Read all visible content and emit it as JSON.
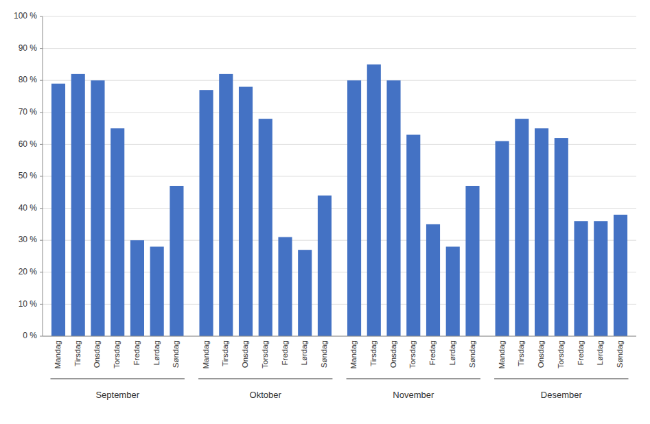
{
  "chart_data": {
    "type": "bar",
    "categories": [
      "Mandag",
      "Tirsdag",
      "Onsdag",
      "Torsdag",
      "Fredag",
      "Lørdag",
      "Søndag",
      "Mandag",
      "Tirsdag",
      "Onsdag",
      "Torsdag",
      "Fredag",
      "Lørdag",
      "Søndag",
      "Mandag",
      "Tirsdag",
      "Onsdag",
      "Torsdag",
      "Fredag",
      "Lørdag",
      "Søndag",
      "Mandag",
      "Tirsdag",
      "Onsdag",
      "Torsdag",
      "Fredag",
      "Lørdag",
      "Søndag"
    ],
    "groups": [
      "September",
      "Oktober",
      "November",
      "Desember"
    ],
    "values": [
      0.79,
      0.82,
      0.8,
      0.65,
      0.3,
      0.28,
      0.47,
      0.77,
      0.82,
      0.78,
      0.68,
      0.31,
      0.27,
      0.44,
      0.8,
      0.85,
      0.8,
      0.63,
      0.35,
      0.28,
      0.47,
      0.61,
      0.68,
      0.65,
      0.62,
      0.36,
      0.36,
      0.38
    ],
    "color": "#4472C4",
    "ylim": [
      0,
      1.0
    ],
    "yticks": [
      {
        "value": 0.0,
        "label": "0 %"
      },
      {
        "value": 0.1,
        "label": "10 %"
      },
      {
        "value": 0.2,
        "label": "20 %"
      },
      {
        "value": 0.3,
        "label": "30 %"
      },
      {
        "value": 0.4,
        "label": "40 %"
      },
      {
        "value": 0.5,
        "label": "50 %"
      },
      {
        "value": 0.6,
        "label": "60 %"
      },
      {
        "value": 0.7,
        "label": "70 %"
      },
      {
        "value": 0.8,
        "label": "80 %"
      },
      {
        "value": 0.9,
        "label": "90 %"
      },
      {
        "value": 1.0,
        "label": "100 %"
      }
    ],
    "grid": true
  }
}
